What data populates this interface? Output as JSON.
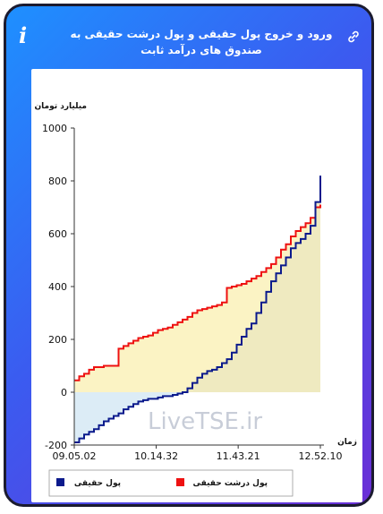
{
  "header": {
    "title": "ورود و خروج پول حقیقی و پول درشت حقیقی به صندوق های درآمد ثابت",
    "info_icon": "info-icon",
    "link_icon": "link-icon"
  },
  "watermark": "LiveTSE.ir",
  "chart_data": {
    "type": "line",
    "ylabel": "میلیارد تومان",
    "xlabel": "زمان",
    "ylim": [
      -200,
      1000
    ],
    "yticks": [
      "1000",
      "800",
      "600",
      "400",
      "200",
      "0",
      "-200"
    ],
    "xticks": [
      "09.05.02",
      "10.14.32",
      "11.43.21",
      "12.52.10"
    ],
    "grid": false,
    "legend_position": "bottom",
    "x": [
      0,
      2,
      4,
      6,
      8,
      10,
      12,
      14,
      16,
      18,
      20,
      22,
      24,
      26,
      28,
      30,
      32,
      34,
      36,
      38,
      40,
      42,
      44,
      46,
      48,
      50,
      52,
      54,
      56,
      58,
      60,
      62,
      64,
      66,
      68,
      70,
      72,
      74,
      76,
      78,
      80,
      82,
      84,
      86,
      88,
      90,
      92,
      94,
      96,
      98,
      100
    ],
    "series": [
      {
        "name": "پول درشت حقیقی",
        "color": "#ee1111",
        "fill": "#fbf3c4",
        "values": [
          45,
          60,
          70,
          85,
          95,
          95,
          100,
          100,
          100,
          165,
          175,
          185,
          195,
          205,
          210,
          215,
          225,
          235,
          240,
          245,
          255,
          265,
          275,
          285,
          300,
          310,
          315,
          320,
          325,
          330,
          340,
          395,
          400,
          405,
          410,
          420,
          430,
          440,
          455,
          470,
          485,
          510,
          540,
          560,
          590,
          610,
          625,
          640,
          660,
          700,
          710
        ]
      },
      {
        "name": "پول حقیقی",
        "color": "#0b1a8c",
        "fill": "#ece8c0",
        "values": [
          -190,
          -175,
          -160,
          -150,
          -140,
          -125,
          -110,
          -100,
          -90,
          -80,
          -65,
          -55,
          -45,
          -35,
          -30,
          -25,
          -25,
          -20,
          -15,
          -15,
          -10,
          -5,
          0,
          15,
          35,
          55,
          70,
          80,
          85,
          95,
          110,
          125,
          150,
          180,
          210,
          240,
          260,
          300,
          340,
          380,
          420,
          450,
          480,
          510,
          545,
          565,
          580,
          600,
          630,
          720,
          820
        ]
      }
    ]
  }
}
